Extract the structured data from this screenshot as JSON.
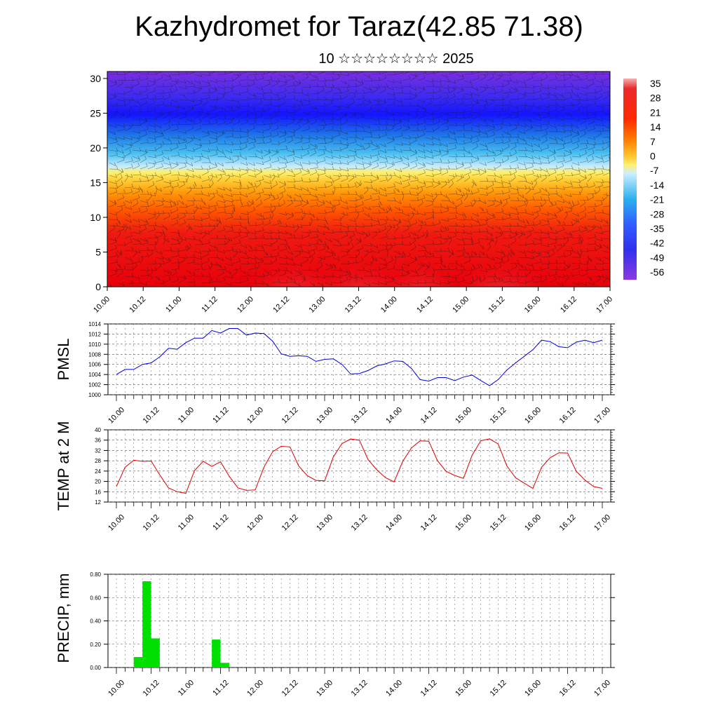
{
  "title": "Kazhydromet for Taraz(42.85 71.38)",
  "subtitle": "10 ☆☆☆☆☆☆☆☆ 2025",
  "time_labels": [
    "10.00",
    "10.12",
    "11.00",
    "11.12",
    "12.00",
    "12.12",
    "13.00",
    "13.12",
    "14.00",
    "14.12",
    "15.00",
    "15.12",
    "16.00",
    "16.12",
    "17.00"
  ],
  "chart_data": [
    {
      "type": "heatmap",
      "name": "temperature-cross-section",
      "x": [
        "10.00",
        "10.12",
        "11.00",
        "11.12",
        "12.00",
        "12.12",
        "13.00",
        "13.12",
        "14.00",
        "14.12",
        "15.00",
        "15.12",
        "16.00",
        "16.12",
        "17.00"
      ],
      "y_ticks": [
        "0",
        "5",
        "10",
        "15",
        "20",
        "25",
        "30"
      ],
      "ylim": [
        0,
        31
      ],
      "colorbar_labels": [
        "35",
        "28",
        "21",
        "14",
        "7",
        "0",
        "-7",
        "-14",
        "-21",
        "-28",
        "-35",
        "-42",
        "-49",
        "-56"
      ],
      "colors": {
        "hot": "#e8000b",
        "warm": "#ff8c00",
        "mild": "#ffe35a",
        "cool": "#2aa8ea",
        "cold": "#1414ff",
        "coldest": "#7a2ee0"
      }
    },
    {
      "type": "line",
      "name": "PMSL",
      "ylabel": "PMSL",
      "y_ticks": [
        "1000",
        "1002",
        "1004",
        "1006",
        "1008",
        "1010",
        "1012",
        "1014"
      ],
      "ylim": [
        1000,
        1014
      ],
      "color": "#0000dd",
      "x_ticks": [
        "10.00",
        "10.12",
        "11.00",
        "11.12",
        "12.00",
        "12.12",
        "13.00",
        "13.12",
        "14.00",
        "14.12",
        "15.00",
        "15.12",
        "16.00",
        "16.12",
        "17.00"
      ],
      "values": [
        1004,
        1005,
        1005,
        1006,
        1006.3,
        1007.5,
        1009.2,
        1009,
        1010.3,
        1011.2,
        1011.2,
        1012.7,
        1012.2,
        1013.1,
        1013.1,
        1011.8,
        1012.2,
        1012.1,
        1010.6,
        1008.1,
        1007.6,
        1007.7,
        1007.6,
        1006.6,
        1007,
        1007.1,
        1006,
        1004.1,
        1004.2,
        1004.8,
        1005.7,
        1006.1,
        1006.7,
        1006.6,
        1005.2,
        1003,
        1002.7,
        1003.4,
        1003.4,
        1002.8,
        1003.5,
        1003.9,
        1002.8,
        1001.8,
        1003,
        1004.9,
        1006.3,
        1007.6,
        1008.9,
        1010.8,
        1010.5,
        1009.5,
        1009.3,
        1010.4,
        1010.8,
        1010.3,
        1010.8
      ]
    },
    {
      "type": "line",
      "name": "TEMP at 2 M",
      "ylabel": "TEMP at 2 M",
      "y_ticks": [
        "12",
        "16",
        "20",
        "24",
        "28",
        "32",
        "36",
        "40"
      ],
      "ylim": [
        12,
        40
      ],
      "color": "#dd0000",
      "x_ticks": [
        "10.00",
        "10.12",
        "11.00",
        "11.12",
        "12.00",
        "12.12",
        "13.00",
        "13.12",
        "14.00",
        "14.12",
        "15.00",
        "15.12",
        "16.00",
        "16.12",
        "17.00"
      ],
      "values": [
        18,
        25.5,
        28.2,
        27.8,
        27.9,
        22.5,
        17.5,
        16,
        15.4,
        24.2,
        27.8,
        25.8,
        27.6,
        22,
        17.5,
        16.5,
        16.7,
        25.5,
        31.5,
        33.6,
        33.4,
        26,
        22.2,
        20.4,
        20.2,
        29.5,
        34.7,
        36.4,
        36,
        28.5,
        24.5,
        21.5,
        19.8,
        27.8,
        33,
        35.7,
        35.6,
        28,
        23.9,
        22.3,
        21.2,
        30.2,
        35.8,
        36.5,
        34.5,
        26,
        21.4,
        19.3,
        17.3,
        25.5,
        29.2,
        31.1,
        31,
        23.9,
        20.5,
        18,
        17.3
      ]
    },
    {
      "type": "bar",
      "name": "PRECIP",
      "ylabel": "PRECIP, mm",
      "y_ticks": [
        "0.00",
        "0.20",
        "0.40",
        "0.60",
        "0.80"
      ],
      "ylim": [
        0,
        0.8
      ],
      "color": "#00e000",
      "x_ticks": [
        "10.00",
        "10.12",
        "11.00",
        "11.12",
        "12.00",
        "12.12",
        "13.00",
        "13.12",
        "14.00",
        "14.12",
        "15.00",
        "15.12",
        "16.00",
        "16.12",
        "17.00"
      ],
      "bars": [
        {
          "start_slot": 2,
          "value": 0.09
        },
        {
          "start_slot": 3,
          "value": 0.74
        },
        {
          "start_slot": 4,
          "value": 0.25
        },
        {
          "start_slot": 11,
          "value": 0.24
        },
        {
          "start_slot": 12,
          "value": 0.04
        }
      ],
      "slots_total": 56
    }
  ]
}
